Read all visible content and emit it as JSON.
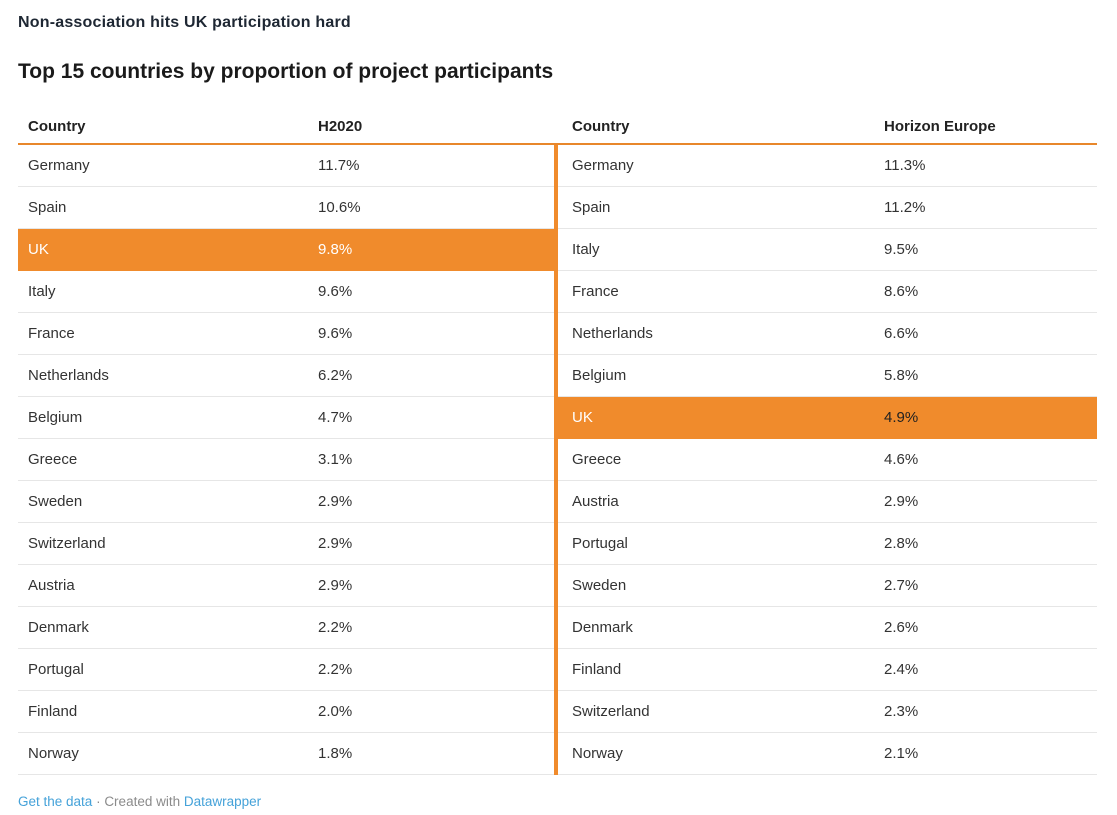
{
  "kicker": "Non-association hits UK participation hard",
  "title": "Top 15 countries by proportion of project participants",
  "colors": {
    "highlight_orange": "#F08B2C",
    "rule_orange": "#E8872B",
    "row_border": "#E6E6E6",
    "kicker_text": "#1E2733",
    "title_text": "#1A1A1A",
    "header_text": "#222222",
    "link_blue": "#45A2D9",
    "footer_gray": "#8B8B8B"
  },
  "tables": [
    {
      "country_header": "Country",
      "value_header": "H2020",
      "rows": [
        {
          "country": "Germany",
          "value": "11.7%"
        },
        {
          "country": "Spain",
          "value": "10.6%"
        },
        {
          "country": "UK",
          "value": "9.8%",
          "highlight": true
        },
        {
          "country": "Italy",
          "value": "9.6%"
        },
        {
          "country": "France",
          "value": "9.6%"
        },
        {
          "country": "Netherlands",
          "value": "6.2%"
        },
        {
          "country": "Belgium",
          "value": "4.7%"
        },
        {
          "country": "Greece",
          "value": "3.1%"
        },
        {
          "country": "Sweden",
          "value": "2.9%"
        },
        {
          "country": "Switzerland",
          "value": "2.9%"
        },
        {
          "country": "Austria",
          "value": "2.9%"
        },
        {
          "country": "Denmark",
          "value": "2.2%"
        },
        {
          "country": "Portugal",
          "value": "2.2%"
        },
        {
          "country": "Finland",
          "value": "2.0%"
        },
        {
          "country": "Norway",
          "value": "1.8%"
        }
      ]
    },
    {
      "country_header": "Country",
      "value_header": "Horizon Europe",
      "rows": [
        {
          "country": "Germany",
          "value": "11.3%"
        },
        {
          "country": "Spain",
          "value": "11.2%"
        },
        {
          "country": "Italy",
          "value": "9.5%"
        },
        {
          "country": "France",
          "value": "8.6%"
        },
        {
          "country": "Netherlands",
          "value": "6.6%"
        },
        {
          "country": "Belgium",
          "value": "5.8%"
        },
        {
          "country": "UK",
          "value": "4.9%",
          "highlight": true,
          "value_dark": true
        },
        {
          "country": "Greece",
          "value": "4.6%"
        },
        {
          "country": "Austria",
          "value": "2.9%"
        },
        {
          "country": "Portugal",
          "value": "2.8%"
        },
        {
          "country": "Sweden",
          "value": "2.7%"
        },
        {
          "country": "Denmark",
          "value": "2.6%"
        },
        {
          "country": "Finland",
          "value": "2.4%"
        },
        {
          "country": "Switzerland",
          "value": "2.3%"
        },
        {
          "country": "Norway",
          "value": "2.1%"
        }
      ]
    }
  ],
  "footer": {
    "get_data_label": "Get the data",
    "separator": " · ",
    "created_with": "Created with ",
    "datawrapper_label": "Datawrapper"
  },
  "chart_data": {
    "type": "table",
    "title": "Top 15 countries by proportion of project participants",
    "kicker": "Non-association hits UK participation hard",
    "highlighted_category": "UK",
    "highlight_color": "#F08B2C",
    "tables": [
      {
        "value_label": "H2020",
        "categories": [
          "Germany",
          "Spain",
          "UK",
          "Italy",
          "France",
          "Netherlands",
          "Belgium",
          "Greece",
          "Sweden",
          "Switzerland",
          "Austria",
          "Denmark",
          "Portugal",
          "Finland",
          "Norway"
        ],
        "values": [
          11.7,
          10.6,
          9.8,
          9.6,
          9.6,
          6.2,
          4.7,
          3.1,
          2.9,
          2.9,
          2.9,
          2.2,
          2.2,
          2.0,
          1.8
        ],
        "unit": "%"
      },
      {
        "value_label": "Horizon Europe",
        "categories": [
          "Germany",
          "Spain",
          "Italy",
          "France",
          "Netherlands",
          "Belgium",
          "UK",
          "Greece",
          "Austria",
          "Portugal",
          "Sweden",
          "Denmark",
          "Finland",
          "Switzerland",
          "Norway"
        ],
        "values": [
          11.3,
          11.2,
          9.5,
          8.6,
          6.6,
          5.8,
          4.9,
          4.6,
          2.9,
          2.8,
          2.7,
          2.6,
          2.4,
          2.3,
          2.1
        ],
        "unit": "%"
      }
    ]
  }
}
